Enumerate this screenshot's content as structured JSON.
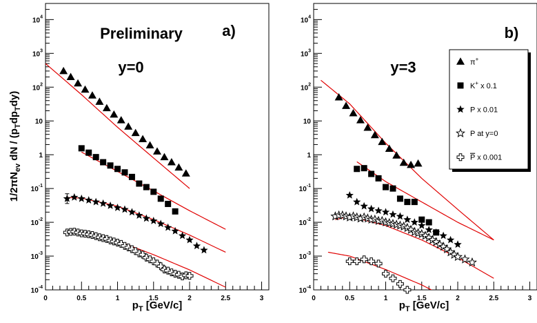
{
  "chart_data": [
    {
      "type": "scatter",
      "panel_label": "a)",
      "annotations": [
        "Preliminary",
        "y=0"
      ],
      "xlabel": "p_T [GeV/c]",
      "ylabel": "1/2πN_ev dN / (p_T dp_T dy)",
      "xlim": [
        0,
        3.1
      ],
      "ylim": [
        0.0001,
        30000
      ],
      "yscale": "log",
      "xticks": [
        "0",
        "0.5",
        "1",
        "1.5",
        "2",
        "2.5",
        "3"
      ],
      "yticks": [
        {
          "base": "10",
          "exp": "-4",
          "value": 0.0001
        },
        {
          "base": "10",
          "exp": "-3",
          "value": 0.001
        },
        {
          "base": "10",
          "exp": "-2",
          "value": 0.01
        },
        {
          "base": "10",
          "exp": "-1",
          "value": 0.1
        },
        {
          "base": "1",
          "exp": "",
          "value": 1
        },
        {
          "base": "10",
          "exp": "",
          "value": 10
        },
        {
          "base": "10",
          "exp": "2",
          "value": 100
        },
        {
          "base": "10",
          "exp": "3",
          "value": 1000
        },
        {
          "base": "10",
          "exp": "4",
          "value": 10000
        }
      ],
      "series": [
        {
          "marker": "triangle",
          "x": [
            0.25,
            0.35,
            0.45,
            0.55,
            0.65,
            0.75,
            0.85,
            0.95,
            1.05,
            1.15,
            1.25,
            1.35,
            1.45,
            1.55,
            1.65,
            1.75,
            1.85,
            1.95
          ],
          "y": [
            300,
            200,
            130,
            85,
            57,
            37,
            24,
            15.5,
            10.5,
            6.8,
            4.4,
            2.9,
            1.9,
            1.25,
            0.85,
            0.6,
            0.42,
            0.28
          ]
        },
        {
          "marker": "square",
          "x": [
            0.5,
            0.6,
            0.7,
            0.8,
            0.9,
            1.0,
            1.1,
            1.2,
            1.3,
            1.4,
            1.5,
            1.6,
            1.7,
            1.8
          ],
          "y": [
            1.55,
            1.15,
            0.85,
            0.6,
            0.48,
            0.38,
            0.3,
            0.22,
            0.14,
            0.11,
            0.08,
            0.05,
            0.035,
            0.021
          ]
        },
        {
          "marker": "star",
          "x": [
            0.3,
            0.4,
            0.5,
            0.6,
            0.7,
            0.8,
            0.9,
            1.0,
            1.1,
            1.2,
            1.3,
            1.4,
            1.5,
            1.6,
            1.7,
            1.8,
            1.9,
            2.0,
            2.1,
            2.2
          ],
          "y": [
            0.05,
            0.055,
            0.05,
            0.045,
            0.04,
            0.036,
            0.031,
            0.027,
            0.024,
            0.02,
            0.016,
            0.013,
            0.011,
            0.009,
            0.007,
            0.0055,
            0.004,
            0.003,
            0.002,
            0.0015
          ],
          "error_first": [
            0.036,
            0.07
          ]
        },
        {
          "marker": "open-cross",
          "x": [
            0.3,
            0.35,
            0.4,
            0.45,
            0.5,
            0.55,
            0.6,
            0.65,
            0.7,
            0.75,
            0.8,
            0.85,
            0.9,
            0.95,
            1.0,
            1.05,
            1.1,
            1.15,
            1.2,
            1.25,
            1.3,
            1.35,
            1.4,
            1.45,
            1.5,
            1.55,
            1.6,
            1.65,
            1.7,
            1.75,
            1.8,
            1.85,
            1.9,
            1.95,
            2.0
          ],
          "y": [
            0.005,
            0.0052,
            0.0053,
            0.005,
            0.0047,
            0.0046,
            0.0044,
            0.0042,
            0.0039,
            0.0036,
            0.0034,
            0.0032,
            0.0029,
            0.0027,
            0.0025,
            0.0023,
            0.002,
            0.0018,
            0.0016,
            0.0014,
            0.0012,
            0.0011,
            0.0009,
            0.0008,
            0.0007,
            0.0006,
            0.0005,
            0.0004,
            0.00037,
            0.00033,
            0.0003,
            0.00028,
            0.00025,
            0.00027,
            0.00026
          ]
        }
      ],
      "fits": [
        {
          "x": [
            0,
            0.5,
            1,
            1.5,
            2
          ],
          "y": [
            500,
            60,
            6.5,
            0.8,
            0.1
          ]
        },
        {
          "x": [
            0.5,
            1,
            1.5,
            2,
            2.5
          ],
          "y": [
            1.2,
            0.32,
            0.085,
            0.022,
            0.0062
          ]
        },
        {
          "x": [
            0.3,
            0.5,
            1,
            1.5,
            2,
            2.5
          ],
          "y": [
            0.054,
            0.052,
            0.03,
            0.012,
            0.0042,
            0.0013
          ]
        },
        {
          "x": [
            0.3,
            0.5,
            1,
            1.5,
            2,
            2.5
          ],
          "y": [
            0.0052,
            0.0051,
            0.0028,
            0.0011,
            0.00039,
            0.00012
          ]
        }
      ]
    },
    {
      "type": "scatter",
      "panel_label": "b)",
      "annotations": [
        "y=3"
      ],
      "xlabel": "p_T [GeV/c]",
      "xlim": [
        0,
        3.1
      ],
      "ylim": [
        0.0001,
        30000
      ],
      "yscale": "log",
      "xticks": [
        "0",
        "0.5",
        "1",
        "1.5",
        "2",
        "2.5",
        "3"
      ],
      "yticks": [
        {
          "base": "10",
          "exp": "-4",
          "value": 0.0001
        },
        {
          "base": "10",
          "exp": "-3",
          "value": 0.001
        },
        {
          "base": "10",
          "exp": "-2",
          "value": 0.01
        },
        {
          "base": "10",
          "exp": "-1",
          "value": 0.1
        },
        {
          "base": "1",
          "exp": "",
          "value": 1
        },
        {
          "base": "10",
          "exp": "",
          "value": 10
        },
        {
          "base": "10",
          "exp": "2",
          "value": 100
        },
        {
          "base": "10",
          "exp": "3",
          "value": 1000
        },
        {
          "base": "10",
          "exp": "4",
          "value": 10000
        }
      ],
      "legend": {
        "placement": "top-right",
        "entries": [
          {
            "marker": "triangle",
            "label": "π",
            "sup": "+",
            "rest": ""
          },
          {
            "marker": "square",
            "label": "K",
            "sup": "+",
            "rest": " x 0.1"
          },
          {
            "marker": "star",
            "label": "P x 0.01",
            "sup": "",
            "rest": ""
          },
          {
            "marker": "open-star",
            "label": "P at y=0",
            "sup": "",
            "rest": ""
          },
          {
            "marker": "open-cross",
            "label": "P",
            "sup": "",
            "rest": " x 0.001",
            "overline": true
          }
        ]
      },
      "series": [
        {
          "marker": "triangle",
          "x": [
            0.35,
            0.45,
            0.55,
            0.65,
            0.75,
            0.85,
            0.95,
            1.05,
            1.15,
            1.25,
            1.35,
            1.45
          ],
          "y": [
            50,
            28,
            17,
            10.5,
            6.3,
            3.8,
            2.4,
            1.5,
            0.95,
            0.58,
            0.5,
            0.55
          ]
        },
        {
          "marker": "square",
          "x": [
            0.6,
            0.7,
            0.8,
            0.9,
            1.0,
            1.1,
            1.2,
            1.3,
            1.4,
            1.5,
            1.6,
            1.7
          ],
          "y": [
            0.38,
            0.4,
            0.27,
            0.2,
            0.11,
            0.1,
            0.05,
            0.04,
            0.04,
            0.012,
            0.01,
            0.005
          ]
        },
        {
          "marker": "star",
          "x": [
            0.5,
            0.6,
            0.7,
            0.8,
            0.9,
            1.0,
            1.1,
            1.2,
            1.3,
            1.4,
            1.5,
            1.6,
            1.7,
            1.8,
            1.9,
            2.0
          ],
          "y": [
            0.063,
            0.04,
            0.03,
            0.025,
            0.022,
            0.02,
            0.017,
            0.015,
            0.012,
            0.01,
            0.008,
            0.006,
            0.005,
            0.004,
            0.003,
            0.0022
          ]
        },
        {
          "marker": "open-star",
          "x": [
            0.3,
            0.35,
            0.4,
            0.45,
            0.5,
            0.55,
            0.6,
            0.65,
            0.7,
            0.75,
            0.8,
            0.85,
            0.9,
            0.95,
            1.0,
            1.05,
            1.1,
            1.15,
            1.2,
            1.25,
            1.3,
            1.35,
            1.4,
            1.45,
            1.5,
            1.55,
            1.6,
            1.65,
            1.7,
            1.75,
            1.8,
            1.85,
            1.9,
            1.95,
            2.0,
            2.1,
            2.2
          ],
          "y": [
            0.015,
            0.016,
            0.016,
            0.015,
            0.014,
            0.015,
            0.014,
            0.013,
            0.014,
            0.013,
            0.012,
            0.012,
            0.011,
            0.011,
            0.01,
            0.0095,
            0.009,
            0.0085,
            0.008,
            0.0075,
            0.0068,
            0.006,
            0.0052,
            0.0048,
            0.0045,
            0.004,
            0.0035,
            0.003,
            0.0026,
            0.0022,
            0.0019,
            0.0016,
            0.0013,
            0.0011,
            0.00095,
            0.0008,
            0.00065
          ]
        },
        {
          "marker": "open-cross",
          "x": [
            0.5,
            0.6,
            0.7,
            0.8,
            0.9,
            1.0,
            1.1,
            1.2,
            1.3
          ],
          "y": [
            0.0007,
            0.0007,
            0.0008,
            0.0007,
            0.0006,
            0.0003,
            0.00022,
            0.00015,
            0.0001
          ]
        }
      ],
      "fits": [
        {
          "x": [
            0.1,
            0.5,
            1,
            1.5,
            2,
            2.5
          ],
          "y": [
            160,
            32,
            2.2,
            0.2,
            0.024,
            0.003
          ]
        },
        {
          "x": [
            0.6,
            1,
            1.5,
            2,
            2.5
          ],
          "y": [
            0.62,
            0.16,
            0.04,
            0.01,
            0.003
          ]
        },
        {
          "x": [
            0.3,
            0.5,
            1,
            1.5,
            2,
            2.5
          ],
          "y": [
            0.012,
            0.015,
            0.008,
            0.003,
            0.0009,
            0.00022
          ]
        },
        {
          "x": [
            0.2,
            0.5,
            1,
            1.5,
            2,
            2.5
          ],
          "y": [
            0.0013,
            0.001,
            0.0004,
            0.00014,
            4e-05,
            1e-05
          ]
        }
      ]
    }
  ]
}
